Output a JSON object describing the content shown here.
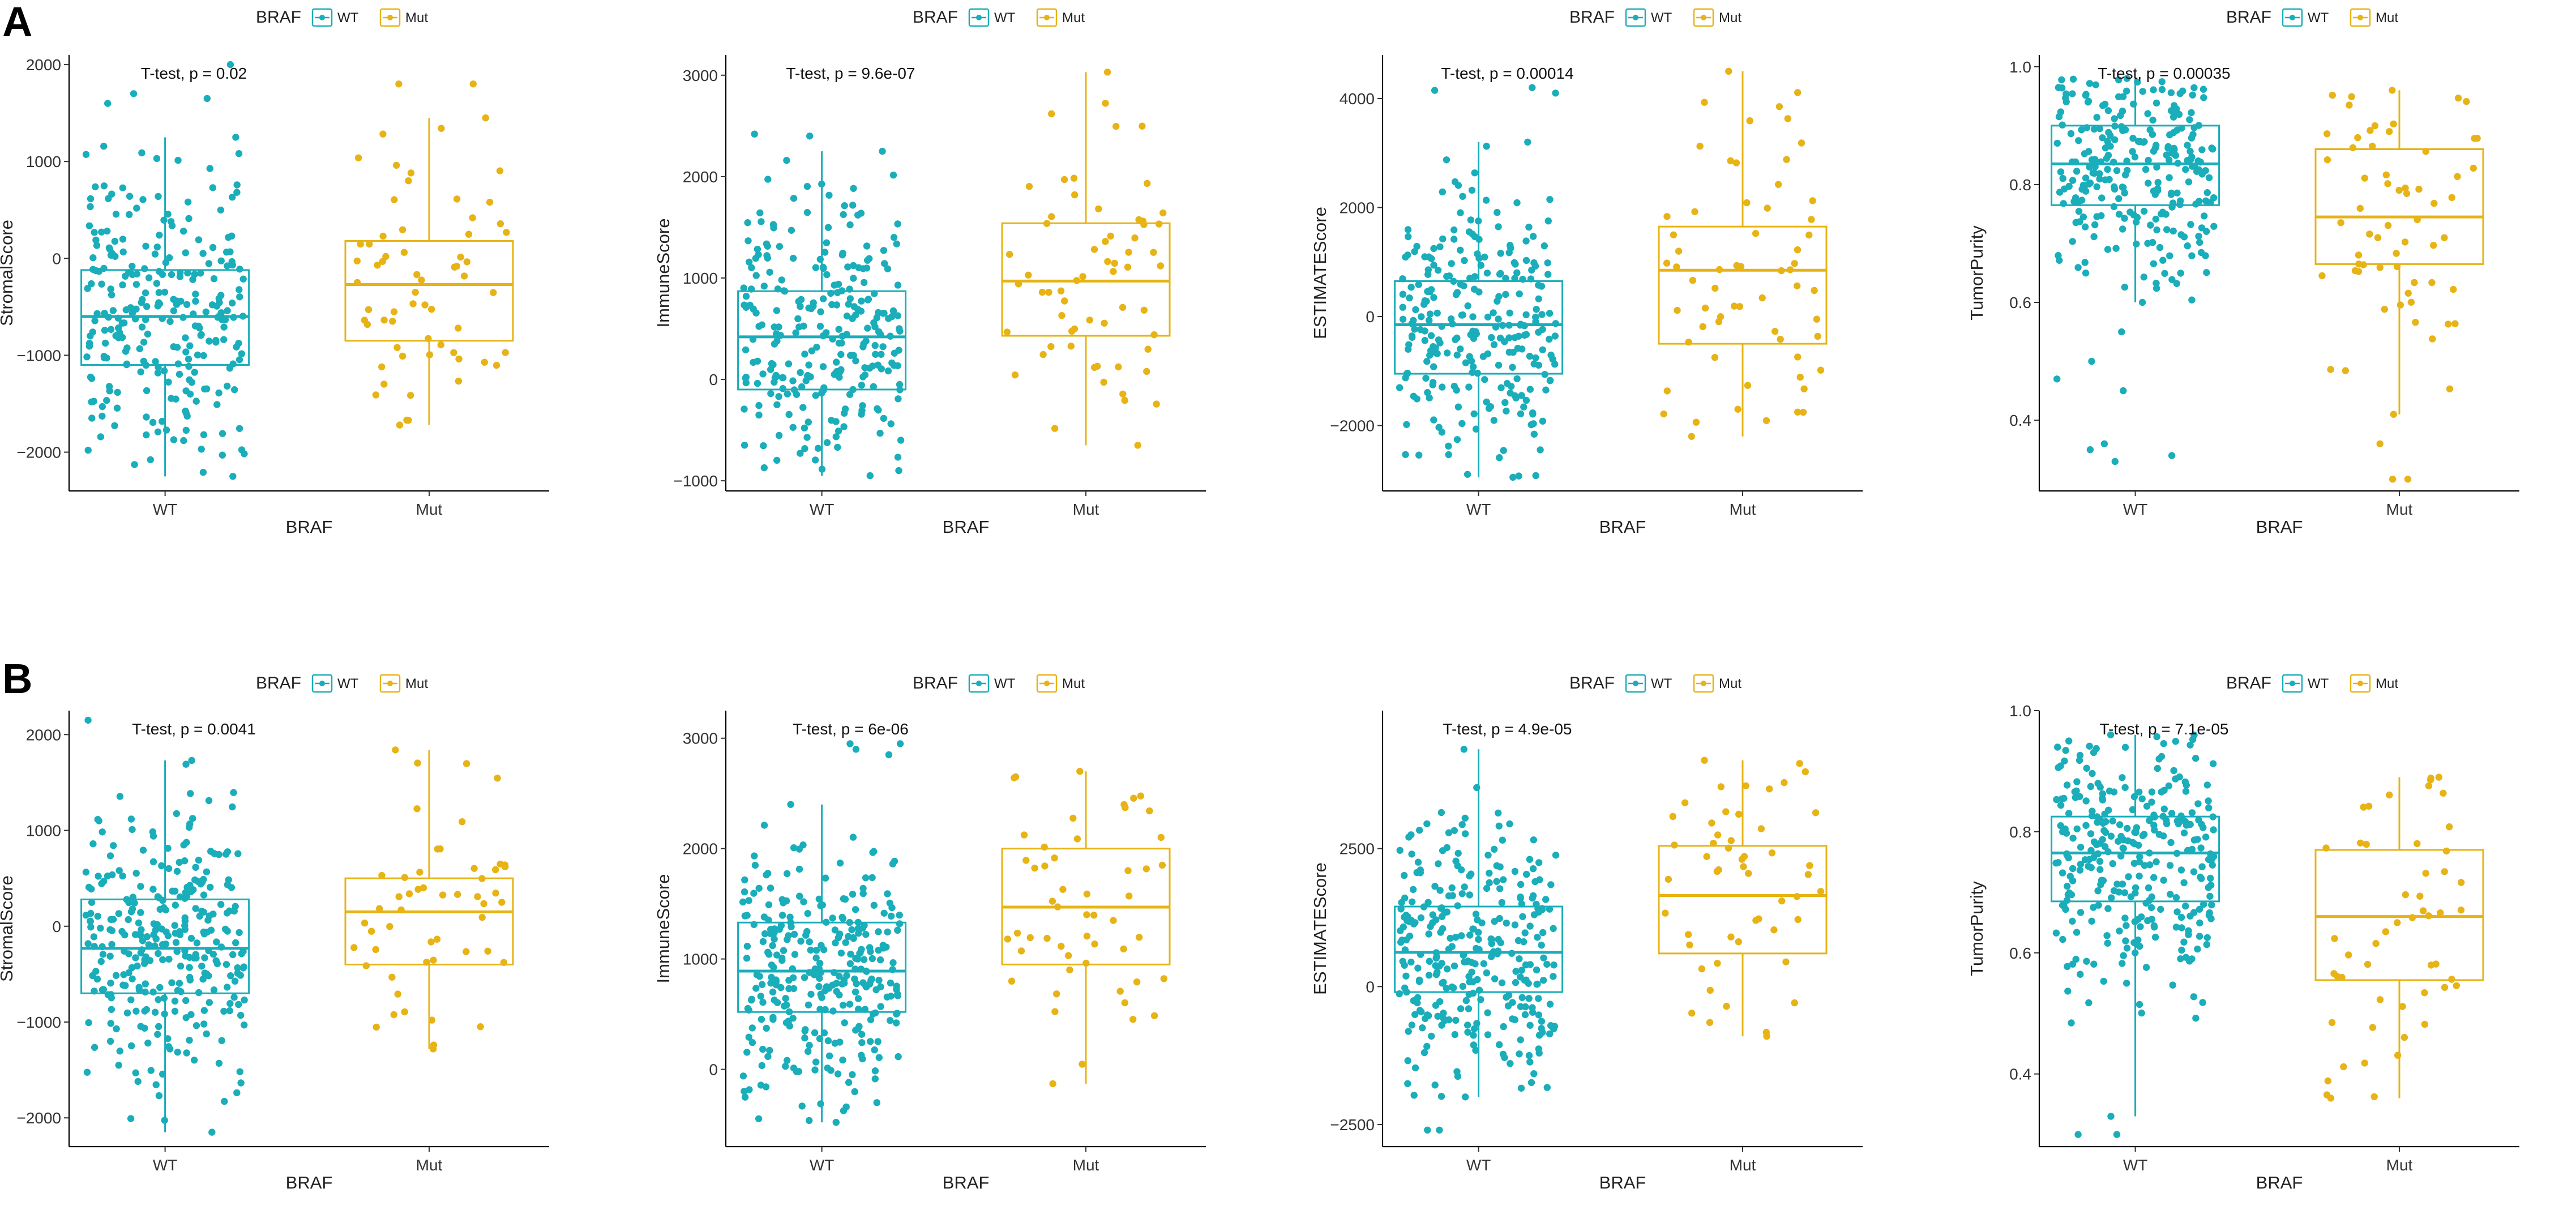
{
  "figure": {
    "panel_labels": [
      "A",
      "B"
    ],
    "legend": {
      "title": "BRAF",
      "items": [
        "WT",
        "Mut"
      ]
    },
    "colors": {
      "WT": "#1AADBA",
      "Mut": "#E7B315"
    }
  },
  "chart_data": [
    {
      "type": "box",
      "row": "A",
      "title": "",
      "xlabel": "BRAF",
      "ylabel": "StromalScore",
      "categories": [
        "WT",
        "Mut"
      ],
      "annotation": "T-test, p = 0.02",
      "ylim": [
        -2400,
        2100
      ],
      "yticks": [
        -2000,
        -1000,
        0,
        1000,
        2000
      ],
      "boxes": [
        {
          "group": "WT",
          "min": -2250,
          "q1": -1100,
          "median": -600,
          "q3": -120,
          "max": 1250,
          "n": 260,
          "outliers": [
            1600,
            1650,
            1700,
            2000
          ]
        },
        {
          "group": "Mut",
          "min": -1720,
          "q1": -850,
          "median": -270,
          "q3": 180,
          "max": 1450,
          "n": 60,
          "outliers": [
            1800,
            1800
          ]
        }
      ]
    },
    {
      "type": "box",
      "row": "A",
      "title": "",
      "xlabel": "BRAF",
      "ylabel": "ImmuneScore",
      "categories": [
        "WT",
        "Mut"
      ],
      "annotation": "T-test, p = 9.6e-07",
      "ylim": [
        -1100,
        3200
      ],
      "yticks": [
        -1000,
        0,
        1000,
        2000,
        3000
      ],
      "boxes": [
        {
          "group": "WT",
          "min": -950,
          "q1": -100,
          "median": 420,
          "q3": 870,
          "max": 2250,
          "n": 260,
          "outliers": [
            2400,
            2420
          ]
        },
        {
          "group": "Mut",
          "min": -650,
          "q1": 430,
          "median": 970,
          "q3": 1540,
          "max": 3030,
          "n": 60,
          "outliers": []
        }
      ]
    },
    {
      "type": "box",
      "row": "A",
      "title": "",
      "xlabel": "BRAF",
      "ylabel": "ESTIMATEScore",
      "categories": [
        "WT",
        "Mut"
      ],
      "annotation": "T-test, p = 0.00014",
      "ylim": [
        -3200,
        4800
      ],
      "yticks": [
        -2000,
        0,
        2000,
        4000
      ],
      "boxes": [
        {
          "group": "WT",
          "min": -2950,
          "q1": -1050,
          "median": -150,
          "q3": 650,
          "max": 3200,
          "n": 260,
          "outliers": [
            4100,
            4150,
            4200
          ]
        },
        {
          "group": "Mut",
          "min": -2200,
          "q1": -500,
          "median": 850,
          "q3": 1650,
          "max": 4500,
          "n": 60,
          "outliers": []
        }
      ]
    },
    {
      "type": "box",
      "row": "A",
      "title": "",
      "xlabel": "BRAF",
      "ylabel": "TumorPurity",
      "categories": [
        "WT",
        "Mut"
      ],
      "annotation": "T-test, p = 0.00035",
      "ylim": [
        0.28,
        1.02
      ],
      "yticks": [
        0.4,
        0.6,
        0.8,
        1.0
      ],
      "boxes": [
        {
          "group": "WT",
          "min": 0.6,
          "q1": 0.765,
          "median": 0.835,
          "q3": 0.9,
          "max": 0.98,
          "n": 260,
          "outliers": [
            0.33,
            0.34,
            0.35,
            0.36,
            0.45,
            0.47,
            0.5,
            0.55
          ]
        },
        {
          "group": "Mut",
          "min": 0.41,
          "q1": 0.665,
          "median": 0.745,
          "q3": 0.86,
          "max": 0.96,
          "n": 60,
          "outliers": [
            0.3,
            0.3,
            0.36
          ]
        }
      ]
    },
    {
      "type": "box",
      "row": "B",
      "title": "",
      "xlabel": "BRAF",
      "ylabel": "StromalScore",
      "categories": [
        "WT",
        "Mut"
      ],
      "annotation": "T-test, p = 0.0041",
      "ylim": [
        -2300,
        2250
      ],
      "yticks": [
        -2000,
        -1000,
        0,
        1000,
        2000
      ],
      "boxes": [
        {
          "group": "WT",
          "min": -2150,
          "q1": -700,
          "median": -230,
          "q3": 280,
          "max": 1730,
          "n": 300,
          "outliers": [
            2150
          ]
        },
        {
          "group": "Mut",
          "min": -1280,
          "q1": -400,
          "median": 150,
          "q3": 500,
          "max": 1840,
          "n": 50,
          "outliers": []
        }
      ]
    },
    {
      "type": "box",
      "row": "B",
      "title": "",
      "xlabel": "BRAF",
      "ylabel": "ImmuneScore",
      "categories": [
        "WT",
        "Mut"
      ],
      "annotation": "T-test, p = 6e-06",
      "ylim": [
        -700,
        3250
      ],
      "yticks": [
        0,
        1000,
        2000,
        3000
      ],
      "boxes": [
        {
          "group": "WT",
          "min": -480,
          "q1": 520,
          "median": 890,
          "q3": 1330,
          "max": 2400,
          "n": 300,
          "outliers": [
            2850,
            2900,
            2950,
            2950
          ]
        },
        {
          "group": "Mut",
          "min": -130,
          "q1": 950,
          "median": 1470,
          "q3": 2000,
          "max": 2700,
          "n": 50,
          "outliers": []
        }
      ]
    },
    {
      "type": "box",
      "row": "B",
      "title": "",
      "xlabel": "BRAF",
      "ylabel": "ESTIMATEScore",
      "categories": [
        "WT",
        "Mut"
      ],
      "annotation": "T-test, p = 4.9e-05",
      "ylim": [
        -2900,
        5000
      ],
      "yticks": [
        -2500,
        0,
        2500
      ],
      "boxes": [
        {
          "group": "WT",
          "min": -2000,
          "q1": -100,
          "median": 620,
          "q3": 1450,
          "max": 4300,
          "n": 300,
          "outliers": [
            -2600,
            -2600
          ]
        },
        {
          "group": "Mut",
          "min": -900,
          "q1": 600,
          "median": 1650,
          "q3": 2550,
          "max": 4100,
          "n": 50,
          "outliers": []
        }
      ]
    },
    {
      "type": "box",
      "row": "B",
      "title": "",
      "xlabel": "BRAF",
      "ylabel": "TumorPurity",
      "categories": [
        "WT",
        "Mut"
      ],
      "annotation": "T-test, p = 7.1e-05",
      "ylim": [
        0.28,
        1.0
      ],
      "yticks": [
        0.4,
        0.6,
        0.8,
        1.0
      ],
      "boxes": [
        {
          "group": "WT",
          "min": 0.33,
          "q1": 0.685,
          "median": 0.765,
          "q3": 0.825,
          "max": 0.96,
          "n": 300,
          "outliers": [
            0.3,
            0.3
          ]
        },
        {
          "group": "Mut",
          "min": 0.36,
          "q1": 0.555,
          "median": 0.66,
          "q3": 0.77,
          "max": 0.89,
          "n": 50,
          "outliers": []
        }
      ]
    }
  ]
}
